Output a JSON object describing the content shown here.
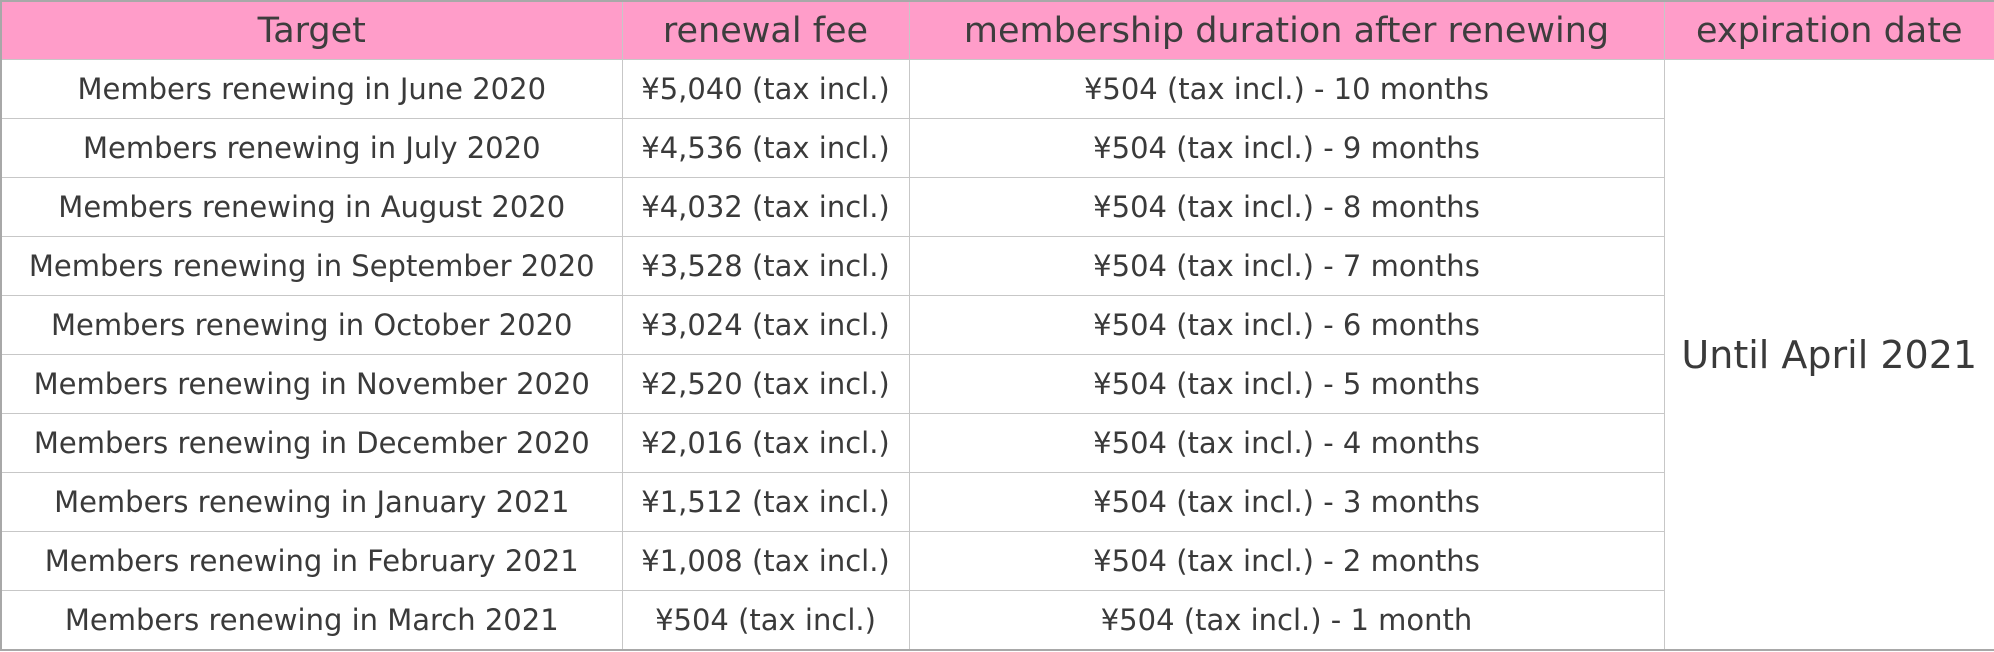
{
  "table": {
    "headers": [
      "Target",
      "renewal fee",
      "membership duration after renewing",
      "expiration date"
    ],
    "rows": [
      {
        "target": "Members renewing in June 2020",
        "fee": "¥5,040 (tax incl.)",
        "duration": "¥504 (tax incl.) - 10 months"
      },
      {
        "target": "Members renewing in July 2020",
        "fee": "¥4,536 (tax incl.)",
        "duration": "¥504 (tax incl.) - 9 months"
      },
      {
        "target": "Members renewing in August 2020",
        "fee": "¥4,032 (tax incl.)",
        "duration": "¥504 (tax incl.) - 8 months"
      },
      {
        "target": "Members renewing in September 2020",
        "fee": "¥3,528 (tax incl.)",
        "duration": "¥504 (tax incl.) - 7 months"
      },
      {
        "target": "Members renewing in October 2020",
        "fee": "¥3,024 (tax incl.)",
        "duration": "¥504 (tax incl.) - 6 months"
      },
      {
        "target": "Members renewing in November 2020",
        "fee": "¥2,520 (tax incl.)",
        "duration": "¥504 (tax incl.) - 5 months"
      },
      {
        "target": "Members renewing in December 2020",
        "fee": "¥2,016 (tax incl.)",
        "duration": "¥504 (tax incl.) - 4 months"
      },
      {
        "target": "Members renewing in January 2021",
        "fee": "¥1,512 (tax incl.)",
        "duration": "¥504 (tax incl.) - 3 months"
      },
      {
        "target": "Members renewing in February 2021",
        "fee": "¥1,008 (tax incl.)",
        "duration": "¥504 (tax incl.) - 2 months"
      },
      {
        "target": "Members renewing in March 2021",
        "fee": "¥504 (tax incl.)",
        "duration": "¥504 (tax incl.) - 1 month"
      }
    ],
    "expiration": "Until April 2021"
  },
  "colors": {
    "header_background": "#ff9dc9",
    "border": "#c7c7c7",
    "text": "#3a3a3a"
  }
}
